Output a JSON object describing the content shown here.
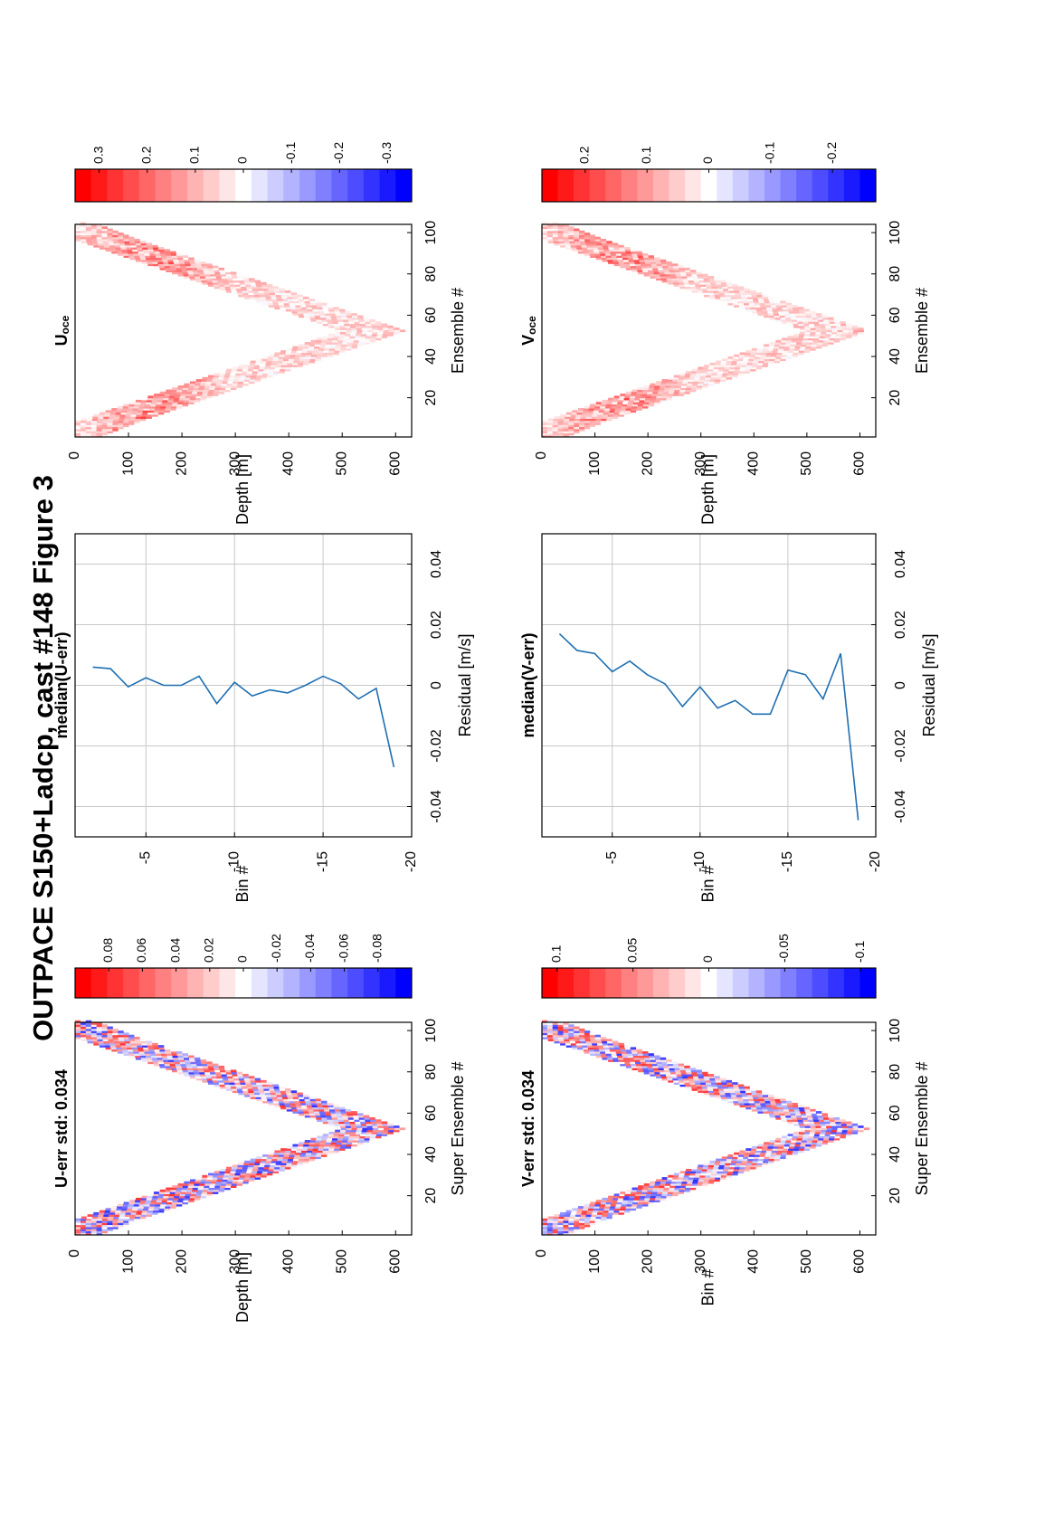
{
  "figure": {
    "title": "OUTPACE S150+Ladcp, cast #148  Figure 3",
    "colors": {
      "axis": "#000000",
      "grid": "#c8c8c8",
      "line": "#1f6fb2",
      "neg": "#0000ff",
      "pos": "#ff0000"
    }
  },
  "chart_data": [
    {
      "id": "u_err",
      "type": "heatmap",
      "title": "U-err std: 0.034",
      "xlabel": "Super Ensemble #",
      "ylabel": "Depth [m]",
      "xticks": [
        "20",
        "40",
        "60",
        "80",
        "100"
      ],
      "yticks": [
        "0",
        "100",
        "200",
        "300",
        "400",
        "500",
        "600"
      ],
      "xlim": [
        1,
        104
      ],
      "ylim": [
        0,
        630
      ],
      "colorbar": {
        "ticks": [
          "0.08",
          "0.06",
          "0.04",
          "0.02",
          "0",
          "-0.02",
          "-0.04",
          "-0.06",
          "-0.08"
        ],
        "clim": [
          -0.1,
          0.1
        ]
      }
    },
    {
      "id": "u_med",
      "type": "line",
      "title": "median(U-err)",
      "xlabel": "Residual [m/s]",
      "ylabel": "Bin #",
      "xticks": [
        "-0.04",
        "-0.02",
        "0",
        "0.02",
        "0.04"
      ],
      "yticks": [
        "-5",
        "-10",
        "-15",
        "-20"
      ],
      "xlim": [
        -0.05,
        0.05
      ],
      "ylim": [
        -1,
        -20
      ],
      "x": [
        0.006,
        0.0055,
        -0.0005,
        0.0025,
        0.0,
        0.0,
        0.003,
        -0.006,
        0.001,
        -0.0035,
        -0.0015,
        -0.0025,
        0.0,
        0.003,
        0.0005,
        -0.0045,
        -0.001,
        -0.027
      ],
      "y": [
        -2,
        -3,
        -4,
        -5,
        -6,
        -7,
        -8,
        -9,
        -10,
        -11,
        -12,
        -13,
        -14,
        -15,
        -16,
        -17,
        -18,
        -19
      ]
    },
    {
      "id": "u_oce",
      "type": "heatmap",
      "title": "U",
      "title_sub": "oce",
      "xlabel": "Ensemble #",
      "ylabel": "Depth [m]",
      "xticks": [
        "20",
        "40",
        "60",
        "80",
        "100"
      ],
      "yticks": [
        "0",
        "100",
        "200",
        "300",
        "400",
        "500",
        "600"
      ],
      "xlim": [
        1,
        104
      ],
      "ylim": [
        0,
        630
      ],
      "colorbar": {
        "ticks": [
          "0.3",
          "0.2",
          "0.1",
          "0",
          "-0.1",
          "-0.2",
          "-0.3"
        ],
        "clim": [
          -0.35,
          0.35
        ]
      }
    },
    {
      "id": "v_err",
      "type": "heatmap",
      "title": "V-err std: 0.034",
      "xlabel": "Super Ensemble #",
      "ylabel": "Bin #",
      "xticks": [
        "20",
        "40",
        "60",
        "80",
        "100"
      ],
      "yticks": [
        "0",
        "100",
        "200",
        "300",
        "400",
        "500",
        "600"
      ],
      "xlim": [
        1,
        104
      ],
      "ylim": [
        0,
        630
      ],
      "colorbar": {
        "ticks": [
          "0.1",
          "0.05",
          "0",
          "-0.05",
          "-0.1"
        ],
        "clim": [
          -0.11,
          0.11
        ]
      }
    },
    {
      "id": "v_med",
      "type": "line",
      "title": "median(V-err)",
      "xlabel": "Residual [m/s]",
      "ylabel": "Bin #",
      "xticks": [
        "-0.04",
        "-0.02",
        "0",
        "0.02",
        "0.04"
      ],
      "yticks": [
        "-5",
        "-10",
        "-15",
        "-20"
      ],
      "xlim": [
        -0.05,
        0.05
      ],
      "ylim": [
        -1,
        -20
      ],
      "x": [
        0.017,
        0.0115,
        0.0105,
        0.0045,
        0.008,
        0.0035,
        0.0005,
        -0.007,
        -0.0005,
        -0.0075,
        -0.005,
        -0.0095,
        -0.0095,
        0.005,
        0.0035,
        -0.0045,
        0.0105,
        -0.0445
      ],
      "y": [
        -2,
        -3,
        -4,
        -5,
        -6,
        -7,
        -8,
        -9,
        -10,
        -11,
        -12,
        -13,
        -14,
        -15,
        -16,
        -17,
        -18,
        -19
      ]
    },
    {
      "id": "v_oce",
      "type": "heatmap",
      "title": "V",
      "title_sub": "oce",
      "xlabel": "Ensemble #",
      "ylabel": "Depth [m]",
      "xticks": [
        "20",
        "40",
        "60",
        "80",
        "100"
      ],
      "yticks": [
        "0",
        "100",
        "200",
        "300",
        "400",
        "500",
        "600"
      ],
      "xlim": [
        1,
        104
      ],
      "ylim": [
        0,
        630
      ],
      "colorbar": {
        "ticks": [
          "0.2",
          "0.1",
          "0",
          "-0.1",
          "-0.2"
        ],
        "clim": [
          -0.27,
          0.27
        ]
      }
    }
  ]
}
